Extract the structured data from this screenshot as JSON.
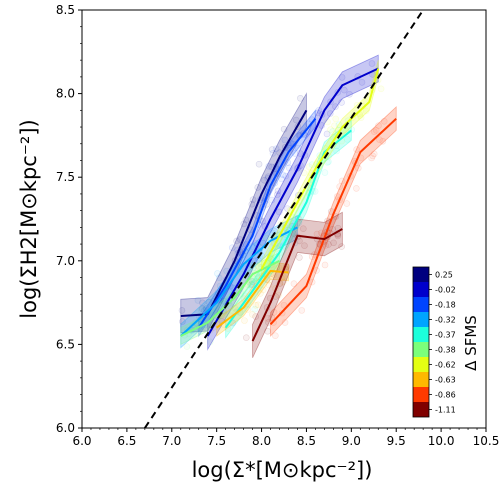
{
  "chart_data": {
    "type": "line",
    "xlabel": "log(Σ*[M⊙kpc⁻²])",
    "ylabel": "log(ΣH2[M⊙kpc⁻²])",
    "xlim": [
      6.0,
      10.5
    ],
    "ylim": [
      6.0,
      8.5
    ],
    "xticks": [
      "6.0",
      "6.5",
      "7.0",
      "7.5",
      "8.0",
      "8.5",
      "9.0",
      "9.5",
      "10.0",
      "10.5"
    ],
    "yticks": [
      "6.0",
      "6.5",
      "7.0",
      "7.5",
      "8.0",
      "8.5"
    ],
    "colorbar": {
      "title": "Δ SFMS",
      "labels": [
        "0.25",
        "-0.02",
        "-0.18",
        "-0.32",
        "-0.37",
        "-0.38",
        "-0.62",
        "-0.63",
        "-0.86",
        "-1.11"
      ],
      "colors": [
        "#00007f",
        "#0000cc",
        "#0044ff",
        "#00a4ff",
        "#1cffdb",
        "#7bff7b",
        "#e4ff13",
        "#ffb900",
        "#ff3a00",
        "#800000"
      ]
    },
    "reference_line": {
      "style": "dashed",
      "color": "#000000",
      "points": [
        [
          6.7,
          6.0
        ],
        [
          9.8,
          8.5
        ]
      ]
    },
    "series": [
      {
        "color": "#00007f",
        "x": [
          7.1,
          7.4,
          7.7,
          8.0,
          8.2,
          8.5
        ],
        "y": [
          6.67,
          6.68,
          7.0,
          7.4,
          7.62,
          7.9
        ],
        "band": 0.1
      },
      {
        "color": "#0000cc",
        "x": [
          7.4,
          7.8,
          8.1,
          8.4,
          8.7,
          8.9,
          9.3
        ],
        "y": [
          6.55,
          6.92,
          7.25,
          7.55,
          7.9,
          8.05,
          8.15
        ],
        "band": 0.08
      },
      {
        "color": "#0044ff",
        "x": [
          7.3,
          7.6,
          7.9,
          8.1,
          8.3,
          8.6
        ],
        "y": [
          6.6,
          6.85,
          7.15,
          7.45,
          7.65,
          7.85
        ],
        "band": 0.05
      },
      {
        "color": "#00a4ff",
        "x": [
          7.1,
          7.5,
          7.8,
          8.1,
          8.4
        ],
        "y": [
          6.55,
          6.75,
          6.98,
          7.12,
          7.2
        ],
        "band": 0.07
      },
      {
        "color": "#1cffdb",
        "x": [
          7.6,
          7.9,
          8.2,
          8.5,
          8.7,
          9.0
        ],
        "y": [
          6.6,
          6.82,
          7.05,
          7.35,
          7.65,
          7.78
        ],
        "band": 0.06
      },
      {
        "color": "#7bff7b",
        "x": [
          7.1,
          7.4,
          7.7,
          7.9,
          8.2
        ],
        "y": [
          6.55,
          6.63,
          6.78,
          6.92,
          7.0
        ],
        "band": 0.05
      },
      {
        "color": "#e4ff13",
        "x": [
          8.0,
          8.3,
          8.6,
          8.9,
          9.2,
          9.3
        ],
        "y": [
          6.95,
          7.25,
          7.55,
          7.8,
          7.95,
          8.15
        ],
        "band": 0.05
      },
      {
        "color": "#ffb900",
        "x": [
          7.5,
          7.8,
          8.1,
          8.3
        ],
        "y": [
          6.6,
          6.72,
          6.94,
          6.93
        ],
        "band": 0.05
      },
      {
        "color": "#ff3a00",
        "x": [
          8.1,
          8.5,
          8.8,
          9.1,
          9.5
        ],
        "y": [
          6.62,
          6.85,
          7.28,
          7.65,
          7.85
        ],
        "band": 0.07
      },
      {
        "color": "#800000",
        "x": [
          7.9,
          8.1,
          8.4,
          8.7,
          8.9
        ],
        "y": [
          6.52,
          6.75,
          7.15,
          7.13,
          7.19
        ],
        "band": 0.1
      }
    ]
  }
}
